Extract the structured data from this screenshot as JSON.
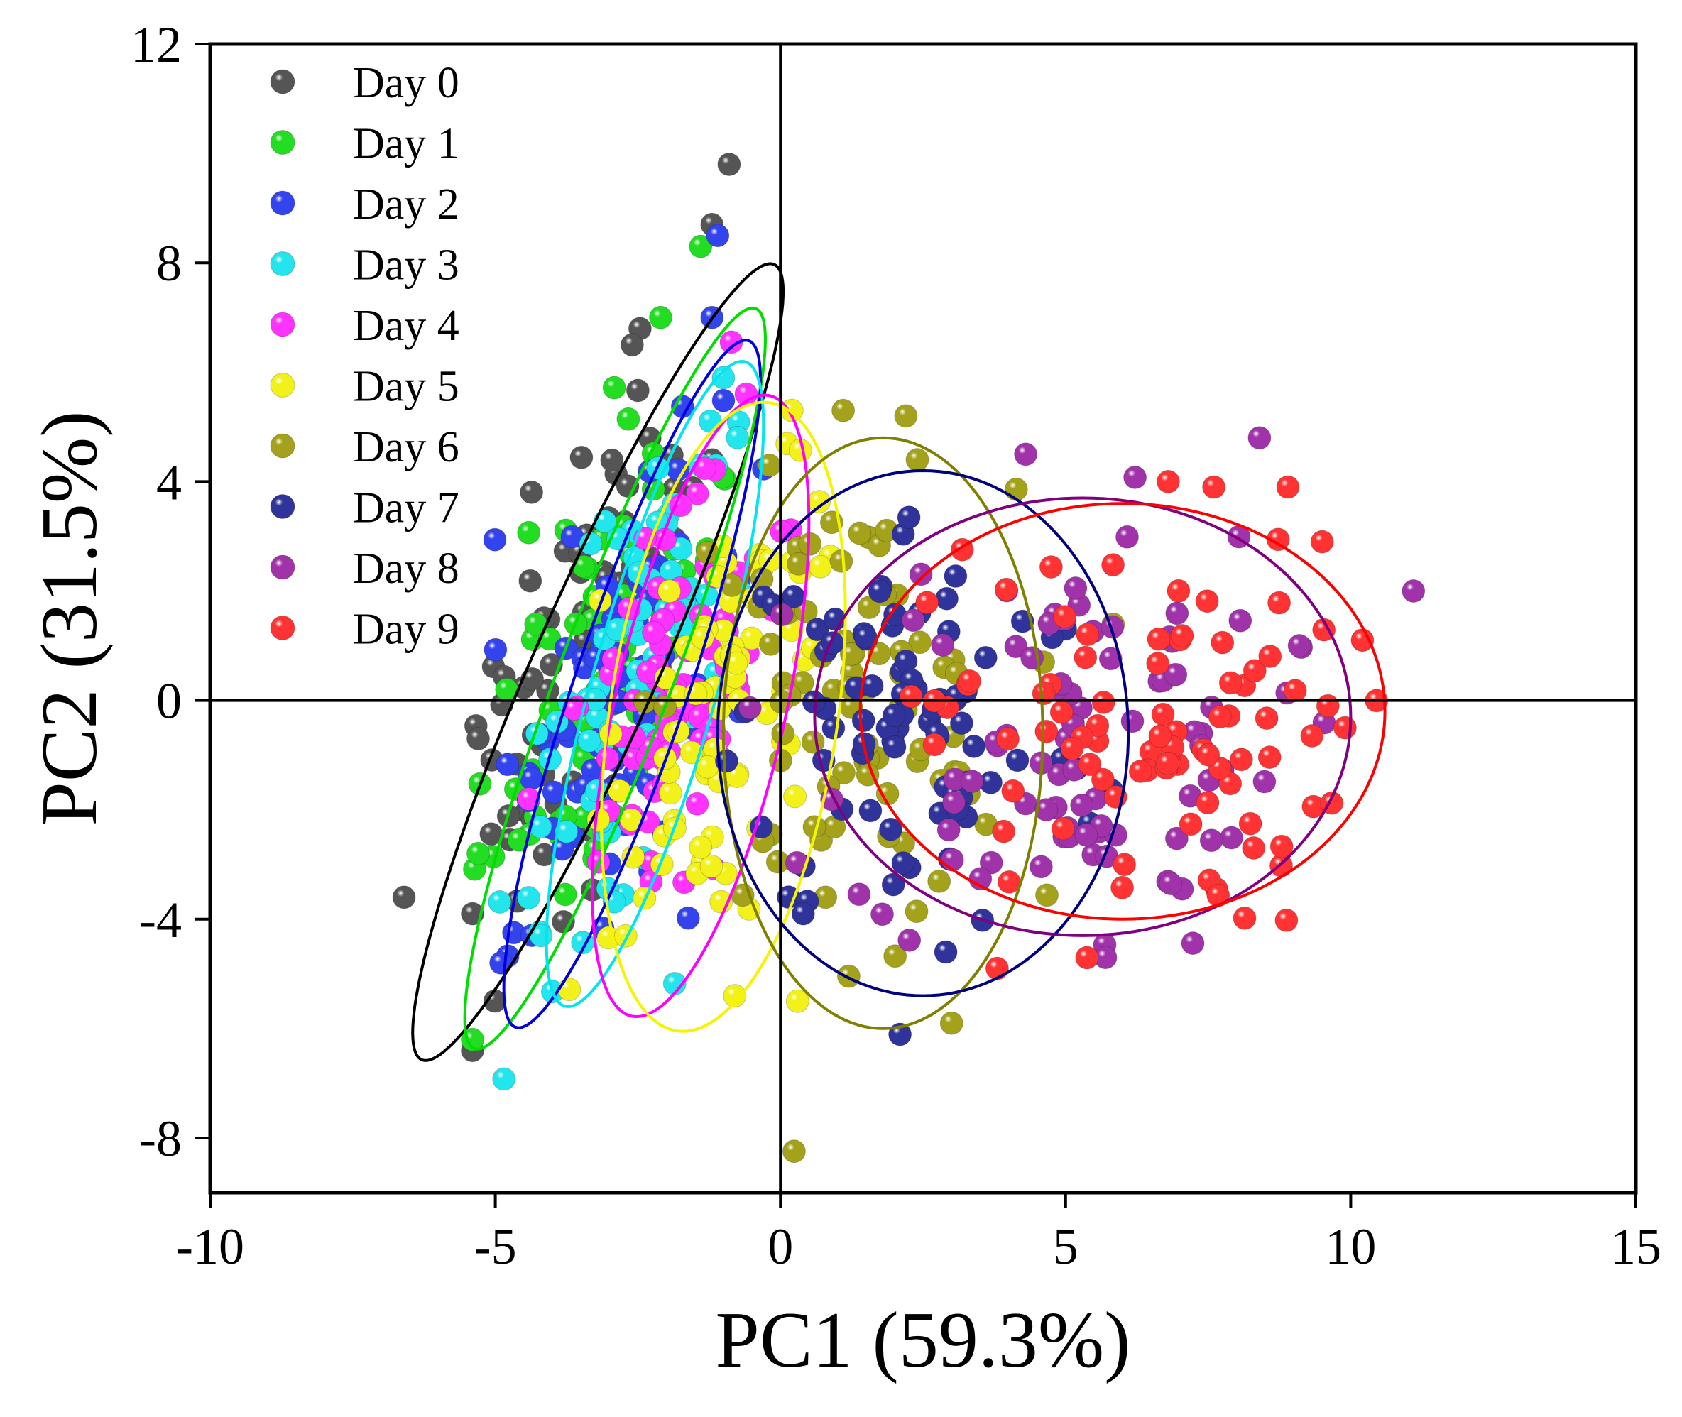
{
  "chart_data": {
    "type": "scatter",
    "title": "",
    "xlabel": "PC1 (59.3%)",
    "ylabel": "PC2 (31.5%)",
    "xlim": [
      -10,
      15
    ],
    "ylim": [
      -9,
      12
    ],
    "xticks": [
      -10,
      -5,
      0,
      5,
      10,
      15
    ],
    "yticks": [
      -8,
      -4,
      0,
      4,
      8,
      12
    ],
    "xtick_labels": [
      "-10",
      "-5",
      "0",
      "5",
      "10",
      "15"
    ],
    "ytick_labels": [
      "-8",
      "-4",
      "0",
      "4",
      "8",
      "12"
    ],
    "grid": false,
    "zero_lines": true,
    "legend_position": "top-left",
    "series": [
      {
        "name": "Day 0",
        "color": "#555555",
        "ring_color": "#000000",
        "center": [
          -3.3,
          0.8
        ],
        "spread": [
          0.85,
          2.4
        ],
        "tilt": 0.55,
        "ellipse": {
          "center": [
            -3.2,
            0.7
          ],
          "semi_major": 7.9,
          "semi_minor": 1.1,
          "angle_deg": 67
        },
        "outliers": [
          [
            -0.9,
            9.8
          ],
          [
            -1.2,
            8.7
          ],
          [
            -6.6,
            -3.6
          ],
          [
            -5.4,
            -6.4
          ],
          [
            -5.4,
            -3.9
          ],
          [
            -2.6,
            6.5
          ],
          [
            -5.3,
            -0.7
          ]
        ]
      },
      {
        "name": "Day 1",
        "color": "#22dd22",
        "ring_color": "#00dd00",
        "center": [
          -3.0,
          0.5
        ],
        "spread": [
          0.85,
          2.4
        ],
        "tilt": 0.5,
        "ellipse": {
          "center": [
            -2.9,
            0.4
          ],
          "semi_major": 7.2,
          "semi_minor": 1.0,
          "angle_deg": 70
        },
        "outliers": [
          [
            -5.4,
            -6.2
          ],
          [
            -1.4,
            8.3
          ],
          [
            -2.1,
            7.0
          ],
          [
            -4.8,
            0.2
          ],
          [
            -5.3,
            -2.8
          ]
        ]
      },
      {
        "name": "Day 2",
        "color": "#3344ee",
        "ring_color": "#0000dd",
        "center": [
          -2.8,
          0.4
        ],
        "spread": [
          0.8,
          2.2
        ],
        "tilt": 0.5,
        "ellipse": {
          "center": [
            -2.6,
            0.3
          ],
          "semi_major": 6.6,
          "semi_minor": 1.0,
          "angle_deg": 72
        },
        "outliers": [
          [
            -1.1,
            8.5
          ],
          [
            -1.2,
            7.0
          ],
          [
            -4.9,
            -4.8
          ]
        ]
      },
      {
        "name": "Day 3",
        "color": "#22e5ee",
        "ring_color": "#00e5ee",
        "center": [
          -2.5,
          0.2
        ],
        "spread": [
          0.8,
          2.1
        ],
        "tilt": 0.45,
        "ellipse": {
          "center": [
            -2.2,
            0.3
          ],
          "semi_major": 6.1,
          "semi_minor": 1.1,
          "angle_deg": 75
        },
        "outliers": [
          [
            -1.0,
            5.9
          ],
          [
            -4.2,
            -4.3
          ]
        ]
      },
      {
        "name": "Day 4",
        "color": "#ff33ff",
        "ring_color": "#ff00ff",
        "center": [
          -1.8,
          0.0
        ],
        "spread": [
          0.85,
          2.0
        ],
        "tilt": 0.4,
        "ellipse": {
          "center": [
            -1.4,
            -0.1
          ],
          "semi_major": 5.8,
          "semi_minor": 1.5,
          "angle_deg": 78
        },
        "outliers": [
          [
            -0.6,
            5.6
          ]
        ]
      },
      {
        "name": "Day 5",
        "color": "#f2f21a",
        "ring_color": "#f5f500",
        "center": [
          -0.9,
          -0.2
        ],
        "spread": [
          0.9,
          2.0
        ],
        "tilt": 0.3,
        "ellipse": {
          "center": [
            -1.0,
            -0.3
          ],
          "semi_major": 5.8,
          "semi_minor": 2.0,
          "angle_deg": 82
        },
        "outliers": [
          [
            0.3,
            -5.5
          ],
          [
            0.2,
            5.3
          ],
          [
            -0.8,
            -5.4
          ]
        ]
      },
      {
        "name": "Day 6",
        "color": "#a3a21a",
        "ring_color": "#808000",
        "center": [
          1.1,
          -0.2
        ],
        "spread": [
          1.5,
          2.0
        ],
        "tilt": 0.0,
        "ellipse": {
          "center": [
            1.8,
            -0.6
          ],
          "semi_major": 5.4,
          "semi_minor": 2.8,
          "angle_deg": 90
        },
        "outliers": [
          [
            2.2,
            5.2
          ],
          [
            1.1,
            5.3
          ],
          [
            3.0,
            -5.9
          ],
          [
            2.4,
            4.4
          ]
        ]
      },
      {
        "name": "Day 7",
        "color": "#303399",
        "ring_color": "#000080",
        "center": [
          2.4,
          -0.4
        ],
        "spread": [
          1.6,
          2.0
        ],
        "tilt": 0.0,
        "ellipse": {
          "center": [
            2.5,
            -0.6
          ],
          "semi_major": 4.8,
          "semi_minor": 3.6,
          "angle_deg": 90
        },
        "outliers": [
          [
            2.9,
            -4.6
          ],
          [
            0.4,
            -3.9
          ]
        ]
      },
      {
        "name": "Day 8",
        "color": "#a033aa",
        "ring_color": "#800080",
        "center": [
          5.0,
          -0.6
        ],
        "spread": [
          1.9,
          2.0
        ],
        "tilt": 0.0,
        "ellipse": {
          "center": [
            5.3,
            -0.3
          ],
          "semi_major": 4.7,
          "semi_minor": 4.0,
          "angle_deg": 0
        },
        "outliers": [
          [
            8.4,
            4.8
          ],
          [
            11.1,
            2.0
          ],
          [
            9.1,
            1.0
          ],
          [
            4.3,
            4.5
          ],
          [
            5.7,
            -4.7
          ]
        ]
      },
      {
        "name": "Day 9",
        "color": "#ff3333",
        "ring_color": "#ff0000",
        "center": [
          6.2,
          -0.7
        ],
        "spread": [
          1.8,
          1.8
        ],
        "tilt": 0.0,
        "ellipse": {
          "center": [
            6.0,
            -0.2
          ],
          "semi_major": 4.6,
          "semi_minor": 3.8,
          "angle_deg": 0
        },
        "outliers": [
          [
            9.9,
            -0.5
          ],
          [
            9.6,
            -0.1
          ],
          [
            8.9,
            3.9
          ],
          [
            9.5,
            2.9
          ],
          [
            6.8,
            4.0
          ],
          [
            7.6,
            3.9
          ],
          [
            3.8,
            -4.9
          ]
        ]
      }
    ]
  }
}
